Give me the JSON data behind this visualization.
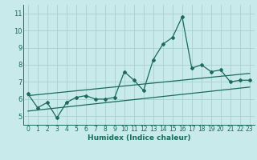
{
  "xlabel": "Humidex (Indice chaleur)",
  "bg_color": "#c8eaea",
  "grid_color": "#a8d0d0",
  "line_color": "#1a6b5a",
  "xlim": [
    -0.5,
    23.5
  ],
  "ylim": [
    4.5,
    11.5
  ],
  "yticks": [
    5,
    6,
    7,
    8,
    9,
    10,
    11
  ],
  "xticks": [
    0,
    1,
    2,
    3,
    4,
    5,
    6,
    7,
    8,
    9,
    10,
    11,
    12,
    13,
    14,
    15,
    16,
    17,
    18,
    19,
    20,
    21,
    22,
    23
  ],
  "series1_x": [
    0,
    1,
    2,
    3,
    4,
    5,
    6,
    7,
    8,
    9,
    10,
    11,
    12,
    13,
    14,
    15,
    16,
    17,
    18,
    19,
    20,
    21,
    22,
    23
  ],
  "series1_y": [
    6.3,
    5.5,
    5.8,
    4.9,
    5.8,
    6.1,
    6.2,
    6.0,
    6.0,
    6.1,
    7.6,
    7.1,
    6.5,
    8.3,
    9.2,
    9.6,
    10.8,
    7.8,
    8.0,
    7.6,
    7.7,
    7.0,
    7.1,
    7.1
  ],
  "series2_x": [
    0,
    23
  ],
  "series2_y": [
    5.3,
    6.7
  ],
  "series3_x": [
    0,
    23
  ],
  "series3_y": [
    6.2,
    7.5
  ]
}
